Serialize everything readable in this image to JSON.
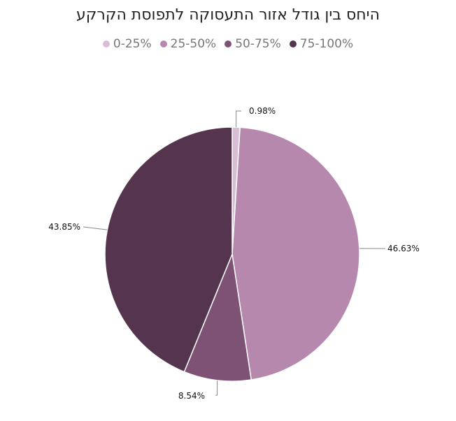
{
  "chart_data": {
    "type": "pie",
    "title": "היחס בין גודל אזור התעסוקה לתפוסת הקרקע",
    "categories": [
      "0-25%",
      "25-50%",
      "50-75%",
      "75-100%"
    ],
    "values": [
      0.98,
      46.63,
      8.54,
      43.85
    ],
    "data_labels": [
      "0.98%",
      "46.63%",
      "8.54%",
      "43.85%"
    ],
    "colors": [
      "#d9bcd6",
      "#b788ad",
      "#7e5275",
      "#54354d"
    ],
    "legend_position": "top"
  }
}
